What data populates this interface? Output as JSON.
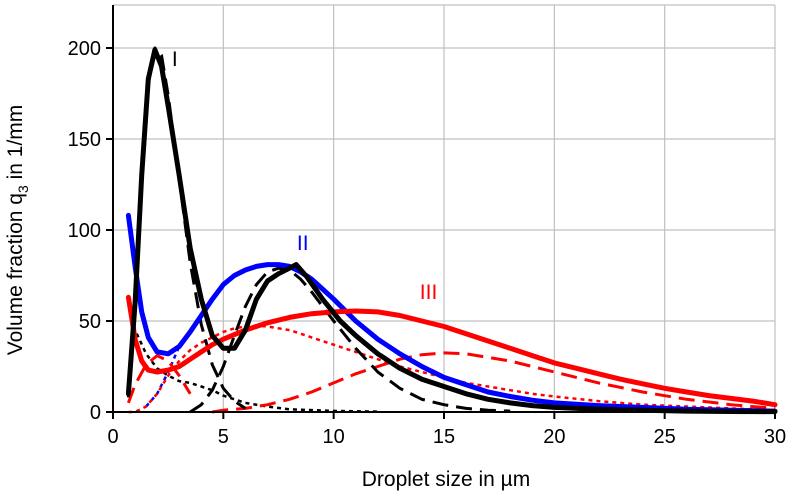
{
  "chart_data": {
    "type": "line",
    "xlabel": "Droplet size in µm",
    "ylabel_main": "Volume fraction q",
    "ylabel_sub": "3",
    "ylabel_unit": " in 1/mm",
    "xlim": [
      0,
      30
    ],
    "ylim": [
      0,
      200
    ],
    "x_ticks": [
      0,
      5,
      10,
      15,
      20,
      25,
      30
    ],
    "y_ticks": [
      0,
      50,
      100,
      150,
      200
    ],
    "grid": true,
    "annotations": [
      {
        "text": "I",
        "x": 2.8,
        "y": 190,
        "color": "#000000"
      },
      {
        "text": "II",
        "x": 8.6,
        "y": 89,
        "color": "#0000ff"
      },
      {
        "text": "III",
        "x": 14.3,
        "y": 62,
        "color": "#ff0000"
      }
    ],
    "series": [
      {
        "color": "#000000",
        "style": "solid",
        "width": 5,
        "x": [
          0.7,
          1.0,
          1.3,
          1.6,
          1.9,
          2.2,
          2.5,
          3.0,
          3.5,
          4.0,
          4.5,
          5.0,
          5.5,
          6.0,
          6.5,
          7.0,
          7.5,
          8.0,
          8.3,
          8.8,
          9.5,
          10.3,
          11.0,
          12.0,
          13.0,
          14.0,
          15.0,
          16.0,
          17.0,
          18.0,
          19.0,
          20.0,
          22.0,
          24.0,
          26.0,
          28.0,
          30.0
        ],
        "values": [
          10,
          60,
          130,
          183,
          199,
          190,
          168,
          130,
          90,
          62,
          42,
          35,
          35,
          45,
          62,
          72,
          76,
          79,
          81,
          74,
          62,
          50,
          42,
          32,
          24,
          18,
          14,
          10,
          7,
          5,
          3.5,
          2.5,
          1.5,
          1,
          0.5,
          0.3,
          0.2
        ]
      },
      {
        "color": "#000000",
        "style": "dashed",
        "width": 3,
        "x": [
          0.7,
          1.0,
          1.3,
          1.6,
          1.9,
          2.2,
          2.5,
          3.0,
          3.5,
          4.0,
          4.5,
          5.0,
          5.5,
          6.0
        ],
        "values": [
          8,
          60,
          128,
          180,
          200,
          196,
          174,
          128,
          82,
          48,
          26,
          13,
          6,
          2
        ]
      },
      {
        "color": "#000000",
        "style": "dashed",
        "width": 3,
        "x": [
          3.5,
          4.0,
          4.5,
          5.0,
          5.5,
          6.0,
          6.5,
          7.0,
          7.5,
          8.0,
          8.5,
          9.0,
          10.0,
          11.0,
          12.0,
          13.0,
          14.0,
          15.0,
          16.0,
          17.0,
          18.0
        ],
        "values": [
          0,
          4,
          12,
          25,
          42,
          58,
          70,
          77,
          79,
          78,
          73,
          66,
          50,
          35,
          22,
          13,
          7,
          4,
          2,
          1,
          0.5
        ]
      },
      {
        "color": "#000000",
        "style": "dotted",
        "width": 2.5,
        "x": [
          0.7,
          1.0,
          1.5,
          2.0,
          2.5,
          3.0,
          3.5,
          4.0,
          4.5,
          5.0,
          6.0,
          7.0,
          8.0,
          10.0,
          12.0
        ],
        "values": [
          60,
          45,
          32,
          24,
          20,
          17,
          16,
          14,
          12,
          9,
          5,
          3,
          1.5,
          0.6,
          0.2
        ]
      },
      {
        "color": "#0000ff",
        "style": "solid",
        "width": 5,
        "x": [
          0.7,
          1.0,
          1.3,
          1.6,
          2.0,
          2.5,
          3.0,
          3.5,
          4.0,
          4.5,
          5.0,
          5.5,
          6.0,
          6.5,
          7.0,
          7.5,
          8.0,
          8.5,
          9.0,
          10.0,
          11.0,
          12.0,
          13.0,
          14.0,
          15.0,
          16.0,
          17.0,
          18.0,
          19.0,
          20.0,
          22.0,
          24.0,
          26.0,
          28.0,
          30.0
        ],
        "values": [
          108,
          80,
          55,
          41,
          33,
          32,
          36,
          44,
          53,
          62,
          70,
          75,
          78,
          80,
          81,
          81,
          80,
          77,
          73,
          62,
          50,
          40,
          32,
          25,
          19,
          15,
          11,
          8.5,
          6.5,
          5,
          3.5,
          2.5,
          1.5,
          1,
          0.5
        ]
      },
      {
        "color": "#0000ff",
        "style": "dotted",
        "width": 2.5,
        "x": [
          1.5,
          2.0,
          2.5,
          3.0
        ],
        "values": [
          3,
          10,
          22,
          36
        ]
      },
      {
        "color": "#ff0000",
        "style": "solid",
        "width": 5,
        "x": [
          0.7,
          1.0,
          1.3,
          1.6,
          2.0,
          2.5,
          3.0,
          3.5,
          4.0,
          4.5,
          5.0,
          6.0,
          7.0,
          8.0,
          9.0,
          10.0,
          11.0,
          12.0,
          13.0,
          14.0,
          15.0,
          16.0,
          17.0,
          18.0,
          19.0,
          20.0,
          21.0,
          22.0,
          23.0,
          24.0,
          25.0,
          26.0,
          27.0,
          28.0,
          29.0,
          30.0
        ],
        "values": [
          63,
          40,
          28,
          23,
          22,
          23,
          25,
          29,
          33,
          37,
          40,
          45,
          49,
          52,
          54,
          55,
          55.5,
          55,
          53,
          50,
          47,
          43,
          39,
          35,
          31,
          27,
          24,
          21,
          18,
          15.5,
          13,
          11,
          9,
          7.5,
          6,
          4
        ]
      },
      {
        "color": "#ff0000",
        "style": "dashed",
        "width": 3,
        "x": [
          0.7,
          1.0,
          1.5,
          2.0,
          2.5,
          3.0,
          3.5
        ],
        "values": [
          5,
          15,
          26,
          31,
          28,
          20,
          10
        ]
      },
      {
        "color": "#ff0000",
        "style": "dashed",
        "width": 3,
        "x": [
          4.5,
          5.0,
          6.0,
          7.0,
          8.0,
          9.0,
          10.0,
          11.0,
          12.0,
          13.0,
          14.0,
          15.0,
          16.0,
          17.0,
          18.0,
          19.0,
          20.0,
          22.0,
          24.0,
          26.0,
          28.0,
          30.0
        ],
        "values": [
          0,
          1,
          2,
          4,
          7,
          11,
          16,
          21,
          25,
          29,
          31.5,
          32.5,
          32,
          30,
          28,
          25,
          22,
          16,
          11,
          7,
          4,
          2
        ]
      },
      {
        "color": "#ff0000",
        "style": "dotted",
        "width": 2.5,
        "x": [
          0.7,
          1.0,
          1.5,
          2.0,
          2.5,
          3.0,
          3.5,
          4.0,
          4.5,
          5.0,
          5.5,
          6.0,
          6.5,
          7.0,
          7.5,
          8.0,
          8.5,
          9.0,
          10.0,
          11.0,
          12.0,
          13.0,
          14.0,
          15.0,
          16.0,
          17.0,
          18.0,
          19.0,
          20.0,
          22.0,
          24.0,
          26.0,
          28.0,
          30.0
        ],
        "values": [
          0,
          0,
          3,
          10,
          20,
          28,
          34,
          38,
          41,
          44,
          46,
          47,
          47.5,
          47,
          46,
          45,
          43,
          41,
          37,
          33,
          29,
          25,
          22,
          19,
          16,
          14,
          12,
          10,
          8.5,
          6,
          4,
          3,
          2,
          1
        ]
      }
    ]
  }
}
